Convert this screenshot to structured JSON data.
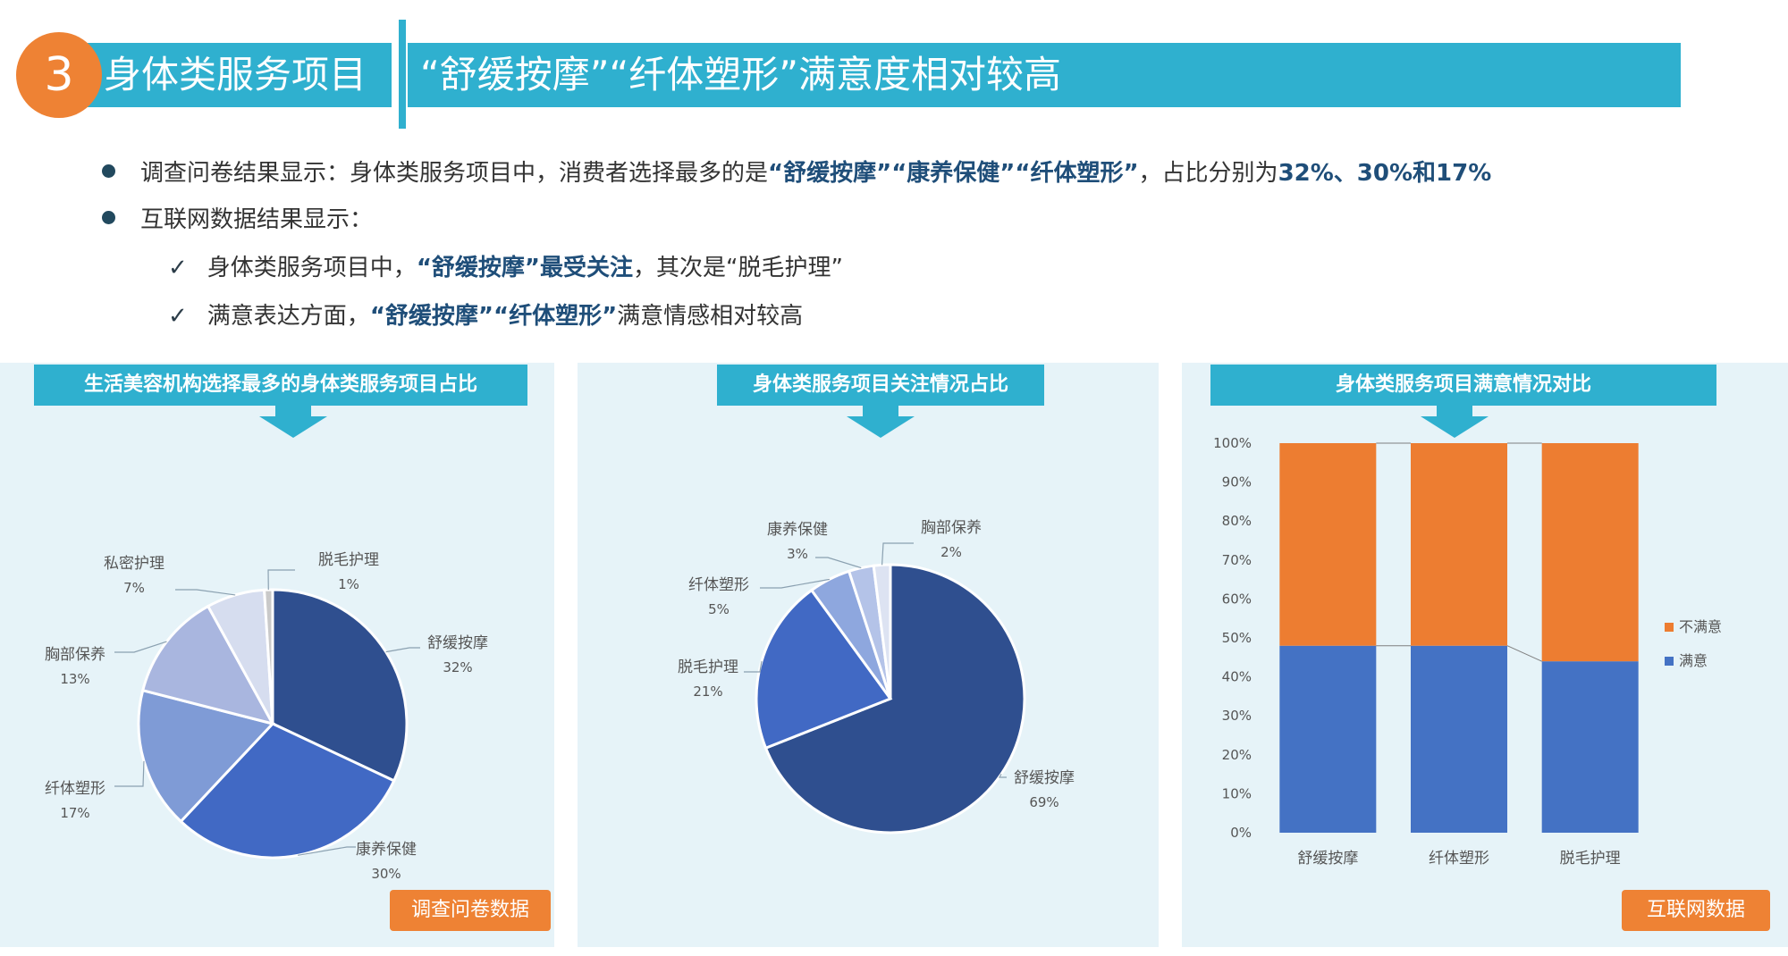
{
  "header": {
    "number": "3",
    "label": "身体类服务项目",
    "title": "“舒缓按摩”“纤体塑形”满意度相对较高"
  },
  "bullets": [
    {
      "parts": [
        {
          "text": "调查问卷结果显示：身体类服务项目中，消费者选择最多的是",
          "em": false
        },
        {
          "text": "“舒缓按摩”“康养保健”“纤体塑形”",
          "em": true
        },
        {
          "text": "，占比分别为",
          "em": false
        },
        {
          "text": "32%、30%和17%",
          "em": true
        }
      ]
    },
    {
      "parts": [
        {
          "text": "互联网数据结果显示：",
          "em": false
        }
      ]
    }
  ],
  "subbullets": [
    {
      "parts": [
        {
          "text": "身体类服务项目中，",
          "em": false
        },
        {
          "text": "“舒缓按摩”最受关注",
          "em": true
        },
        {
          "text": "，其次是“脱毛护理”",
          "em": false
        }
      ]
    },
    {
      "parts": [
        {
          "text": "满意表达方面，",
          "em": false
        },
        {
          "text": "“舒缓按摩”“纤体塑形”",
          "em": true
        },
        {
          "text": "满意情感相对较高",
          "em": false
        }
      ]
    }
  ],
  "panels": {
    "left": {
      "title": "生活美容机构选择最多的身体类服务项目占比",
      "source": "调查问卷数据"
    },
    "middle": {
      "title": "身体类服务项目关注情况占比"
    },
    "right": {
      "title": "身体类服务项目满意情况对比",
      "source": "互联网数据"
    }
  },
  "chart_data": [
    {
      "type": "pie",
      "title": "生活美容机构选择最多的身体类服务项目占比",
      "slices": [
        {
          "label": "舒缓按摩",
          "value": 32,
          "display": "32%",
          "color": "#2f4f8f"
        },
        {
          "label": "康养保健",
          "value": 30,
          "display": "30%",
          "color": "#4169c4"
        },
        {
          "label": "纤体塑形",
          "value": 17,
          "display": "17%",
          "color": "#7f9bd6"
        },
        {
          "label": "胸部保养",
          "value": 13,
          "display": "13%",
          "color": "#a9b6df"
        },
        {
          "label": "私密护理",
          "value": 7,
          "display": "7%",
          "color": "#d6ddef"
        },
        {
          "label": "脱毛护理",
          "value": 1,
          "display": "1%",
          "color": "#c9c9c9"
        }
      ]
    },
    {
      "type": "pie",
      "title": "身体类服务项目关注情况占比",
      "slices": [
        {
          "label": "舒缓按摩",
          "value": 69,
          "display": "69%",
          "color": "#2f4f8f"
        },
        {
          "label": "脱毛护理",
          "value": 21,
          "display": "21%",
          "color": "#4169c4"
        },
        {
          "label": "纤体塑形",
          "value": 5,
          "display": "5%",
          "color": "#8ea7de"
        },
        {
          "label": "康养保健",
          "value": 3,
          "display": "3%",
          "color": "#b4c3e8"
        },
        {
          "label": "胸部保养",
          "value": 2,
          "display": "2%",
          "color": "#dde3f2"
        }
      ]
    },
    {
      "type": "bar",
      "stacked": true,
      "percent_stacked": true,
      "title": "身体类服务项目满意情况对比",
      "categories": [
        "舒缓按摩",
        "纤体塑形",
        "脱毛护理"
      ],
      "series": [
        {
          "name": "满意",
          "values": [
            48,
            48,
            44
          ],
          "color": "#4472c4"
        },
        {
          "name": "不满意",
          "values": [
            52,
            52,
            56
          ],
          "color": "#ed7d31"
        }
      ],
      "ylim": [
        0,
        100
      ],
      "yticks": [
        "0%",
        "10%",
        "20%",
        "30%",
        "40%",
        "50%",
        "60%",
        "70%",
        "80%",
        "90%",
        "100%"
      ],
      "legend": "right",
      "series_lines": true
    }
  ]
}
